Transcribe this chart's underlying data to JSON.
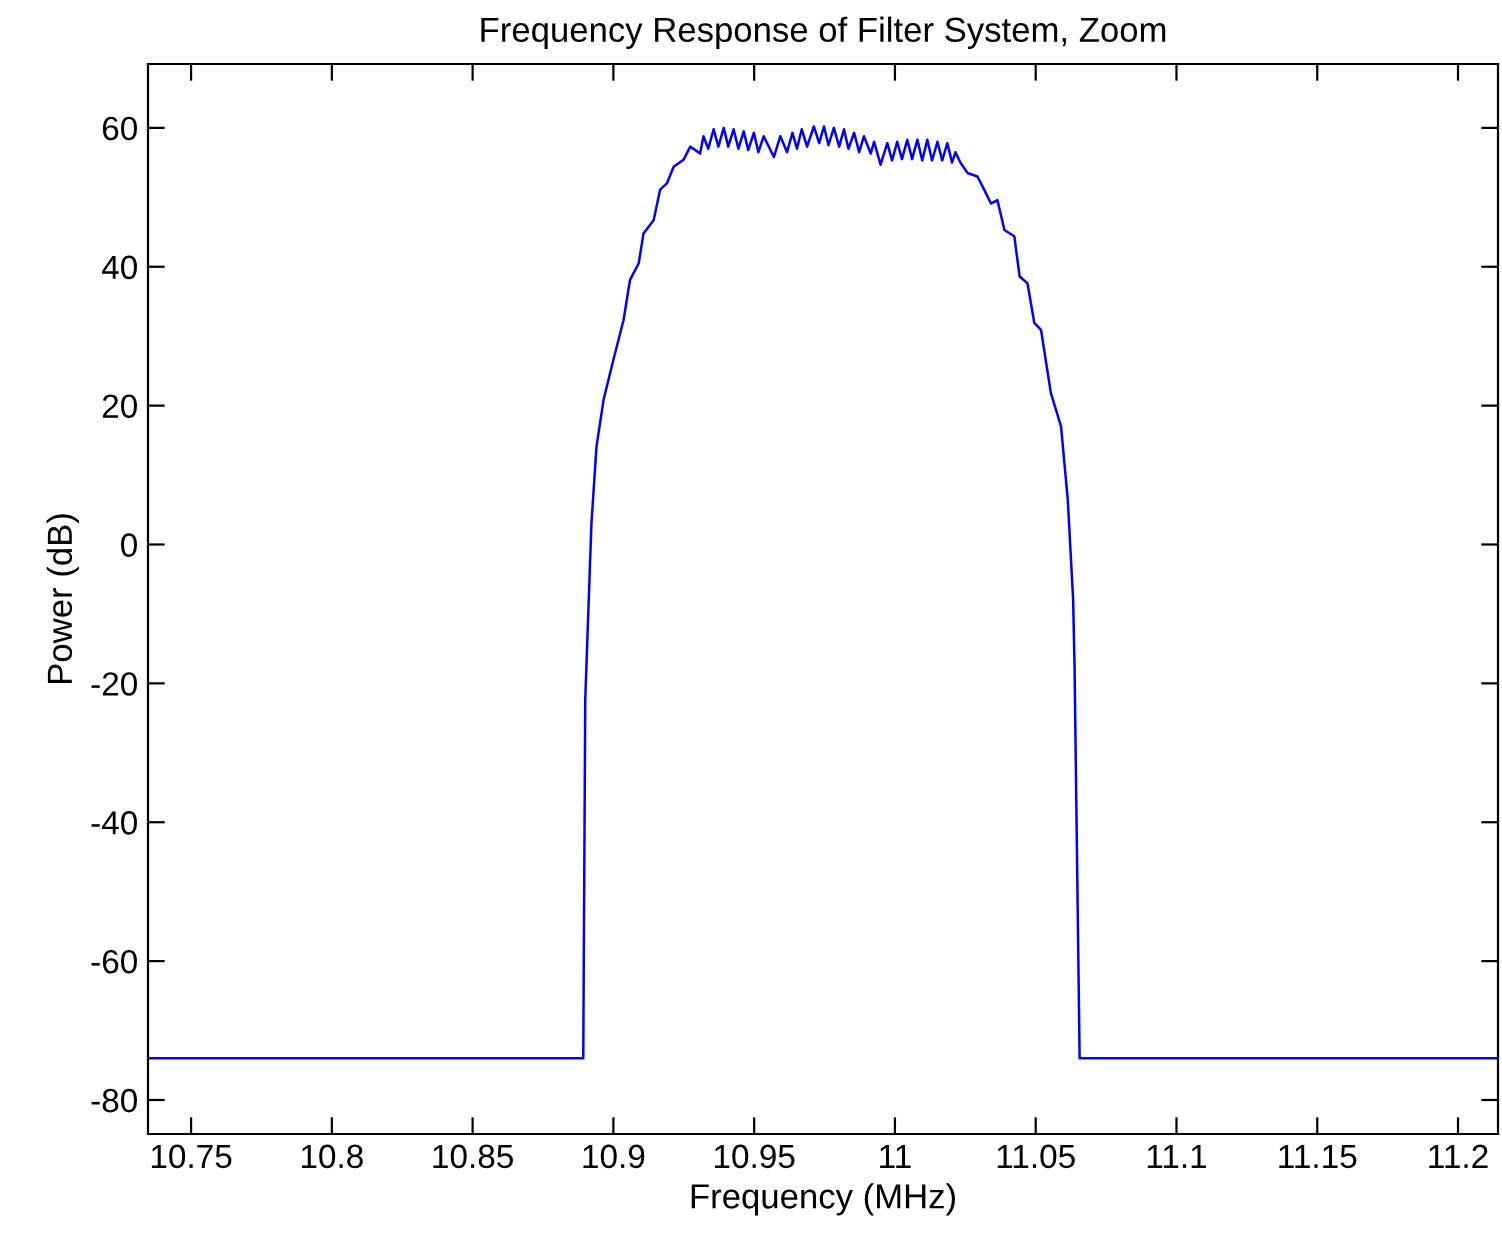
{
  "chart_data": {
    "type": "line",
    "title": "Frequency Response of Filter System, Zoom",
    "xlabel": "Frequency (MHz)",
    "ylabel": "Power (dB)",
    "xlim": [
      10.7347,
      11.2142
    ],
    "ylim": [
      -84.9,
      69.2
    ],
    "xticks": [
      10.75,
      10.8,
      10.85,
      10.9,
      10.95,
      11,
      11.05,
      11.1,
      11.15,
      11.2
    ],
    "yticks": [
      -80,
      -60,
      -40,
      -20,
      0,
      20,
      40,
      60
    ],
    "grid": false,
    "legend": false,
    "marker": "none",
    "line_style": "solid",
    "series": [
      {
        "color": "#0000ff",
        "x": [
          10.735,
          10.8893,
          10.89,
          10.8922,
          10.894,
          10.8965,
          10.9,
          10.9036,
          10.9059,
          10.909,
          10.9107,
          10.9143,
          10.9166,
          10.919,
          10.9214,
          10.9249,
          10.9273,
          10.9308,
          10.932,
          10.9337,
          10.9356,
          10.9373,
          10.9392,
          10.9408,
          10.9427,
          10.9444,
          10.9463,
          10.9479,
          10.9499,
          10.9515,
          10.9534,
          10.957,
          10.9593,
          10.9617,
          10.9636,
          10.9652,
          10.9669,
          10.9688,
          10.9712,
          10.9731,
          10.9748,
          10.9764,
          10.9783,
          10.9802,
          10.9819,
          10.9835,
          10.9855,
          10.9873,
          10.989,
          10.9914,
          10.9926,
          10.9949,
          10.9973,
          10.999,
          11.0008,
          11.0025,
          11.0044,
          11.0061,
          11.008,
          11.0097,
          11.0115,
          11.0132,
          11.0151,
          11.0168,
          11.0186,
          11.0203,
          11.0215,
          11.0234,
          11.0258,
          11.0293,
          11.0317,
          11.0341,
          11.0364,
          11.0389,
          11.0424,
          11.0443,
          11.0471,
          11.0495,
          11.0519,
          11.0554,
          11.059,
          11.0614,
          11.0633,
          11.0638,
          11.0656,
          11.214
        ],
        "values": [
          -74,
          -74,
          -22.4,
          3.0,
          14.1,
          20.8,
          26.6,
          32.3,
          38.1,
          40.5,
          44.8,
          46.7,
          51.1,
          52.0,
          54.4,
          55.4,
          57.3,
          56.3,
          58.8,
          57.0,
          59.8,
          57.3,
          60.0,
          57.3,
          59.8,
          57.0,
          59.5,
          56.8,
          59.3,
          56.5,
          58.8,
          55.8,
          58.8,
          56.5,
          59.3,
          57.0,
          59.8,
          57.3,
          60.2,
          57.8,
          60.2,
          57.5,
          60.0,
          57.3,
          59.8,
          57.0,
          59.3,
          56.5,
          58.8,
          56.3,
          58.0,
          54.7,
          57.8,
          55.3,
          58.0,
          55.5,
          58.3,
          55.5,
          58.3,
          55.3,
          58.3,
          55.3,
          58.0,
          55.3,
          57.8,
          55.0,
          56.5,
          54.9,
          53.5,
          53.0,
          51.1,
          49.1,
          49.6,
          45.3,
          44.4,
          38.6,
          37.6,
          31.9,
          30.9,
          21.8,
          17.0,
          6.4,
          -8.0,
          -17.6,
          -74,
          -74
        ]
      }
    ]
  }
}
